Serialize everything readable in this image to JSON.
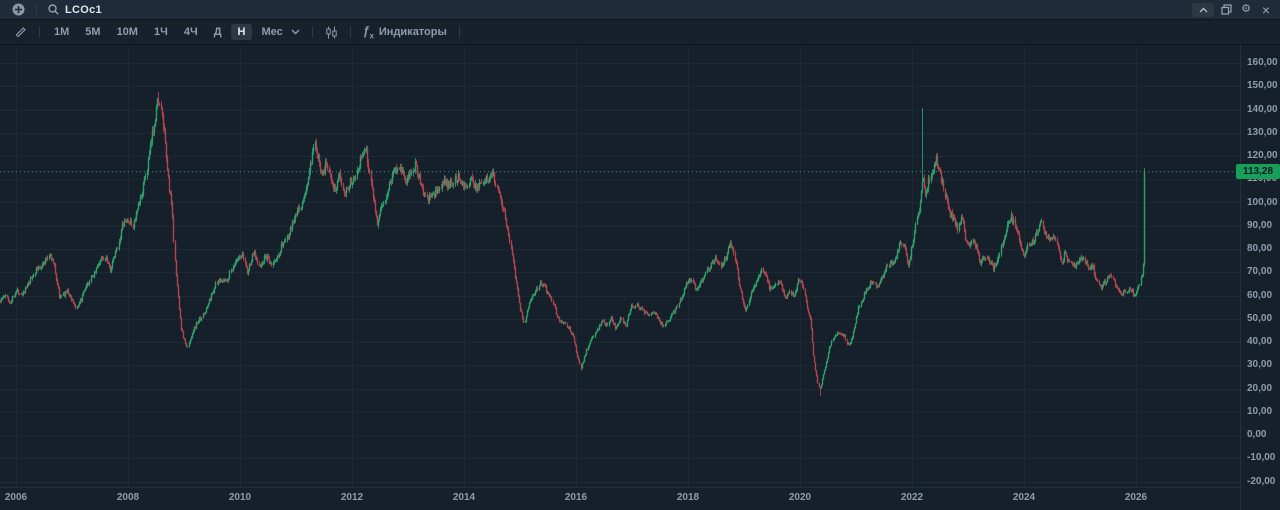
{
  "header": {
    "ticker": "LCOc1",
    "icons": {
      "add": "plus-circle",
      "search": "magnifier"
    },
    "control_glyphs": {
      "gear": "⚙",
      "close": "×"
    }
  },
  "toolbar": {
    "timeframes": [
      "1М",
      "5М",
      "10М",
      "1Ч",
      "4Ч",
      "Д",
      "Н",
      "Мес"
    ],
    "selected_timeframe": "Н",
    "indicators_label": "Индикаторы",
    "indicators_icon": {
      "f": "ƒ",
      "sub": "x"
    }
  },
  "chart_data": {
    "type": "candlestick",
    "symbol": "LCOc1",
    "timeframe": "Н",
    "x_ticks": {
      "values": [
        2006,
        2008,
        2010,
        2012,
        2014,
        2016,
        2018,
        2020,
        2022,
        2024,
        2026
      ],
      "labels": [
        "2006",
        "2008",
        "2010",
        "2012",
        "2014",
        "2016",
        "2018",
        "2020",
        "2022",
        "2024",
        "2026"
      ]
    },
    "y_ticks": {
      "values": [
        160,
        150,
        140,
        130,
        120,
        110,
        100,
        90,
        80,
        70,
        60,
        50,
        40,
        30,
        20,
        10,
        0,
        -10,
        -20
      ],
      "labels": [
        "160,00",
        "150,00",
        "140,00",
        "130,00",
        "120,00",
        "110,00",
        "100,00",
        "90,00",
        "80,00",
        "70,00",
        "60,00",
        "50,00",
        "40,00",
        "30,00",
        "20,00",
        "10,00",
        "0,00",
        "-10,00",
        "-20,00"
      ]
    },
    "xlim": [
      2005.7,
      2026.55
    ],
    "ylim": [
      -25,
      168
    ],
    "grid": true,
    "current_price": {
      "value": 113.28,
      "label": "113,28"
    },
    "colors": {
      "up": "#2ea06c",
      "down": "#b2444e",
      "price_line": "#3aa089",
      "badge_bg": "#16a05a",
      "badge_text": "#0b1622"
    },
    "price_path_anchors": [
      [
        2005.72,
        58
      ],
      [
        2005.8,
        60
      ],
      [
        2005.88,
        57
      ],
      [
        2006.0,
        62
      ],
      [
        2006.1,
        61
      ],
      [
        2006.2,
        64
      ],
      [
        2006.35,
        71
      ],
      [
        2006.5,
        74
      ],
      [
        2006.6,
        78
      ],
      [
        2006.68,
        72
      ],
      [
        2006.78,
        59
      ],
      [
        2006.9,
        62
      ],
      [
        2007.0,
        58
      ],
      [
        2007.08,
        54
      ],
      [
        2007.2,
        61
      ],
      [
        2007.35,
        68
      ],
      [
        2007.5,
        75
      ],
      [
        2007.6,
        77
      ],
      [
        2007.68,
        71
      ],
      [
        2007.8,
        80
      ],
      [
        2007.9,
        91
      ],
      [
        2008.0,
        92
      ],
      [
        2008.08,
        90
      ],
      [
        2008.2,
        100
      ],
      [
        2008.3,
        110
      ],
      [
        2008.4,
        125
      ],
      [
        2008.5,
        140
      ],
      [
        2008.54,
        145
      ],
      [
        2008.62,
        133
      ],
      [
        2008.7,
        113
      ],
      [
        2008.78,
        97
      ],
      [
        2008.85,
        68
      ],
      [
        2008.95,
        45
      ],
      [
        2009.05,
        37
      ],
      [
        2009.15,
        45
      ],
      [
        2009.25,
        49
      ],
      [
        2009.35,
        52
      ],
      [
        2009.45,
        58
      ],
      [
        2009.55,
        64
      ],
      [
        2009.65,
        67
      ],
      [
        2009.75,
        66
      ],
      [
        2009.85,
        72
      ],
      [
        2009.95,
        75
      ],
      [
        2010.05,
        77
      ],
      [
        2010.12,
        70
      ],
      [
        2010.25,
        79
      ],
      [
        2010.35,
        72
      ],
      [
        2010.45,
        77
      ],
      [
        2010.55,
        73
      ],
      [
        2010.65,
        76
      ],
      [
        2010.75,
        82
      ],
      [
        2010.85,
        85
      ],
      [
        2010.95,
        92
      ],
      [
        2011.05,
        97
      ],
      [
        2011.15,
        103
      ],
      [
        2011.25,
        115
      ],
      [
        2011.33,
        124
      ],
      [
        2011.4,
        117
      ],
      [
        2011.48,
        113
      ],
      [
        2011.55,
        117
      ],
      [
        2011.63,
        110
      ],
      [
        2011.7,
        104
      ],
      [
        2011.78,
        112
      ],
      [
        2011.85,
        105
      ],
      [
        2011.95,
        108
      ],
      [
        2012.05,
        112
      ],
      [
        2012.15,
        119
      ],
      [
        2012.24,
        124
      ],
      [
        2012.35,
        106
      ],
      [
        2012.45,
        91
      ],
      [
        2012.55,
        99
      ],
      [
        2012.65,
        107
      ],
      [
        2012.75,
        114
      ],
      [
        2012.85,
        116
      ],
      [
        2012.95,
        109
      ],
      [
        2013.05,
        112
      ],
      [
        2013.12,
        117
      ],
      [
        2013.22,
        108
      ],
      [
        2013.32,
        101
      ],
      [
        2013.45,
        103
      ],
      [
        2013.55,
        106
      ],
      [
        2013.63,
        109
      ],
      [
        2013.72,
        107
      ],
      [
        2013.82,
        110
      ],
      [
        2013.92,
        111
      ],
      [
        2014.02,
        107
      ],
      [
        2014.12,
        109
      ],
      [
        2014.22,
        107
      ],
      [
        2014.32,
        109
      ],
      [
        2014.42,
        110
      ],
      [
        2014.5,
        113
      ],
      [
        2014.6,
        106
      ],
      [
        2014.7,
        97
      ],
      [
        2014.8,
        86
      ],
      [
        2014.9,
        70
      ],
      [
        2015.0,
        55
      ],
      [
        2015.07,
        48
      ],
      [
        2015.17,
        58
      ],
      [
        2015.28,
        62
      ],
      [
        2015.37,
        66
      ],
      [
        2015.47,
        62
      ],
      [
        2015.57,
        58
      ],
      [
        2015.67,
        50
      ],
      [
        2015.77,
        48
      ],
      [
        2015.87,
        46
      ],
      [
        2015.95,
        42
      ],
      [
        2016.03,
        33
      ],
      [
        2016.08,
        29
      ],
      [
        2016.17,
        36
      ],
      [
        2016.27,
        41
      ],
      [
        2016.37,
        45
      ],
      [
        2016.45,
        49
      ],
      [
        2016.55,
        47
      ],
      [
        2016.62,
        50
      ],
      [
        2016.7,
        46
      ],
      [
        2016.8,
        50
      ],
      [
        2016.88,
        47
      ],
      [
        2016.97,
        55
      ],
      [
        2017.07,
        56
      ],
      [
        2017.17,
        54
      ],
      [
        2017.27,
        52
      ],
      [
        2017.37,
        53
      ],
      [
        2017.47,
        50
      ],
      [
        2017.55,
        47
      ],
      [
        2017.65,
        50
      ],
      [
        2017.75,
        53
      ],
      [
        2017.85,
        58
      ],
      [
        2017.95,
        64
      ],
      [
        2018.05,
        67
      ],
      [
        2018.13,
        63
      ],
      [
        2018.22,
        66
      ],
      [
        2018.3,
        69
      ],
      [
        2018.4,
        74
      ],
      [
        2018.5,
        76
      ],
      [
        2018.58,
        73
      ],
      [
        2018.68,
        77
      ],
      [
        2018.75,
        84
      ],
      [
        2018.82,
        78
      ],
      [
        2018.9,
        66
      ],
      [
        2018.98,
        57
      ],
      [
        2019.03,
        54
      ],
      [
        2019.12,
        61
      ],
      [
        2019.22,
        66
      ],
      [
        2019.3,
        71
      ],
      [
        2019.38,
        69
      ],
      [
        2019.45,
        63
      ],
      [
        2019.55,
        64
      ],
      [
        2019.63,
        66
      ],
      [
        2019.72,
        59
      ],
      [
        2019.8,
        61
      ],
      [
        2019.88,
        60
      ],
      [
        2019.97,
        67
      ],
      [
        2020.04,
        65
      ],
      [
        2020.1,
        57
      ],
      [
        2020.18,
        49
      ],
      [
        2020.24,
        33
      ],
      [
        2020.3,
        24
      ],
      [
        2020.34,
        19
      ],
      [
        2020.42,
        27
      ],
      [
        2020.48,
        33
      ],
      [
        2020.55,
        40
      ],
      [
        2020.63,
        43
      ],
      [
        2020.7,
        44
      ],
      [
        2020.78,
        43
      ],
      [
        2020.84,
        39
      ],
      [
        2020.9,
        40
      ],
      [
        2020.97,
        47
      ],
      [
        2021.05,
        55
      ],
      [
        2021.13,
        60
      ],
      [
        2021.22,
        64
      ],
      [
        2021.3,
        67
      ],
      [
        2021.37,
        64
      ],
      [
        2021.45,
        68
      ],
      [
        2021.53,
        72
      ],
      [
        2021.62,
        74
      ],
      [
        2021.7,
        76
      ],
      [
        2021.78,
        83
      ],
      [
        2021.85,
        82
      ],
      [
        2021.92,
        72
      ],
      [
        2022.0,
        81
      ],
      [
        2022.07,
        92
      ],
      [
        2022.13,
        98
      ],
      [
        2022.18,
        112
      ],
      [
        2022.24,
        104
      ],
      [
        2022.3,
        109
      ],
      [
        2022.36,
        112
      ],
      [
        2022.42,
        120
      ],
      [
        2022.48,
        113
      ],
      [
        2022.54,
        109
      ],
      [
        2022.6,
        101
      ],
      [
        2022.68,
        95
      ],
      [
        2022.75,
        92
      ],
      [
        2022.82,
        89
      ],
      [
        2022.88,
        96
      ],
      [
        2022.95,
        84
      ],
      [
        2023.02,
        81
      ],
      [
        2023.08,
        85
      ],
      [
        2023.15,
        80
      ],
      [
        2023.22,
        74
      ],
      [
        2023.3,
        77
      ],
      [
        2023.38,
        74
      ],
      [
        2023.45,
        72
      ],
      [
        2023.53,
        76
      ],
      [
        2023.62,
        84
      ],
      [
        2023.7,
        91
      ],
      [
        2023.77,
        94
      ],
      [
        2023.85,
        89
      ],
      [
        2023.92,
        82
      ],
      [
        2024.0,
        78
      ],
      [
        2024.07,
        81
      ],
      [
        2024.15,
        83
      ],
      [
        2024.23,
        87
      ],
      [
        2024.3,
        91
      ],
      [
        2024.37,
        87
      ],
      [
        2024.45,
        83
      ],
      [
        2024.52,
        86
      ],
      [
        2024.6,
        80
      ],
      [
        2024.67,
        74
      ],
      [
        2024.73,
        79
      ],
      [
        2024.8,
        74
      ],
      [
        2024.87,
        72
      ],
      [
        2024.95,
        74
      ],
      [
        2025.02,
        77
      ],
      [
        2025.08,
        75
      ],
      [
        2025.15,
        71
      ],
      [
        2025.22,
        73
      ],
      [
        2025.3,
        66
      ],
      [
        2025.37,
        63
      ],
      [
        2025.45,
        66
      ],
      [
        2025.52,
        68
      ],
      [
        2025.6,
        66
      ],
      [
        2025.68,
        63
      ],
      [
        2025.75,
        60
      ],
      [
        2025.82,
        62
      ],
      [
        2025.88,
        64
      ],
      [
        2025.95,
        60
      ],
      [
        2026.02,
        62
      ],
      [
        2026.07,
        66
      ],
      [
        2026.11,
        71
      ],
      [
        2026.13,
        74
      ]
    ],
    "wick_extremes": [
      {
        "x": 2008.54,
        "high": 147.5
      },
      {
        "x": 2022.18,
        "high": 140.6
      },
      {
        "x": 2020.34,
        "low": 16.8
      },
      {
        "x": 2016.08,
        "low": 27.5
      }
    ],
    "last_candle": {
      "close": 113.28,
      "high": 114.8
    }
  }
}
